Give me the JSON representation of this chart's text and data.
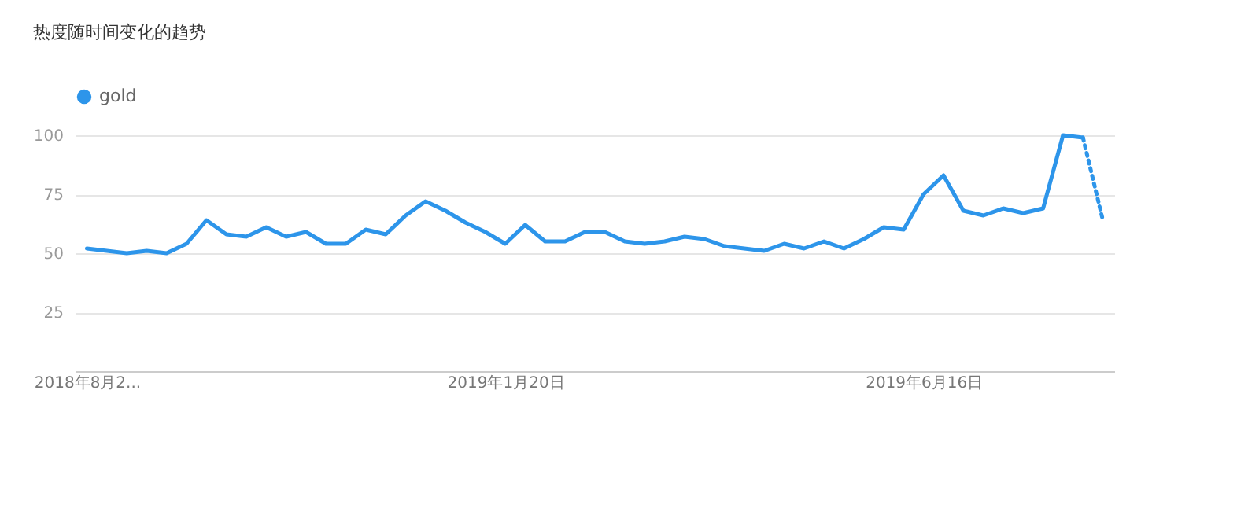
{
  "chart_data": {
    "type": "line",
    "title": "热度随时间变化的趋势",
    "x": [
      "2018-08-26",
      "2018-09-02",
      "2018-09-09",
      "2018-09-16",
      "2018-09-23",
      "2018-09-30",
      "2018-10-07",
      "2018-10-14",
      "2018-10-21",
      "2018-10-28",
      "2018-11-04",
      "2018-11-11",
      "2018-11-18",
      "2018-11-25",
      "2018-12-02",
      "2018-12-09",
      "2018-12-16",
      "2018-12-23",
      "2018-12-30",
      "2019-01-06",
      "2019-01-13",
      "2019-01-20",
      "2019-01-27",
      "2019-02-03",
      "2019-02-10",
      "2019-02-17",
      "2019-02-24",
      "2019-03-03",
      "2019-03-10",
      "2019-03-17",
      "2019-03-24",
      "2019-03-31",
      "2019-04-07",
      "2019-04-14",
      "2019-04-21",
      "2019-04-28",
      "2019-05-05",
      "2019-05-12",
      "2019-05-19",
      "2019-05-26",
      "2019-06-02",
      "2019-06-09",
      "2019-06-16",
      "2019-06-23",
      "2019-06-30",
      "2019-07-07",
      "2019-07-14",
      "2019-07-21",
      "2019-07-28",
      "2019-08-04",
      "2019-08-11",
      "2019-08-18"
    ],
    "series": [
      {
        "name": "gold",
        "color": "#2d95ea",
        "line_style": "solid",
        "values": [
          52,
          51,
          50,
          51,
          50,
          54,
          64,
          58,
          57,
          61,
          57,
          59,
          54,
          54,
          60,
          58,
          66,
          72,
          68,
          63,
          59,
          54,
          62,
          55,
          55,
          59,
          59,
          55,
          54,
          55,
          57,
          56,
          53,
          52,
          51,
          54,
          52,
          55,
          52,
          56,
          61,
          60,
          75,
          83,
          68,
          66,
          69,
          67,
          69,
          100,
          99,
          null
        ]
      },
      {
        "color": "#2d95ea",
        "line_style": "dotted",
        "values": [
          null,
          null,
          null,
          null,
          null,
          null,
          null,
          null,
          null,
          null,
          null,
          null,
          null,
          null,
          null,
          null,
          null,
          null,
          null,
          null,
          null,
          null,
          null,
          null,
          null,
          null,
          null,
          null,
          null,
          null,
          null,
          null,
          null,
          null,
          null,
          null,
          null,
          null,
          null,
          null,
          null,
          null,
          null,
          null,
          null,
          null,
          null,
          null,
          null,
          null,
          99,
          64
        ]
      }
    ],
    "xlim": [
      "2018-08-22",
      "2019-08-22"
    ],
    "xticks": [
      {
        "value": "2018-08-26",
        "label": "2018年8月2..."
      },
      {
        "value": "2019-01-20",
        "label": "2019年1月20日"
      },
      {
        "value": "2019-06-16",
        "label": "2019年6月16日"
      }
    ],
    "ylim": [
      0,
      100
    ],
    "yticks": [
      25,
      50,
      75,
      100
    ],
    "grid": "y",
    "legend": "top left",
    "marker": "none"
  }
}
